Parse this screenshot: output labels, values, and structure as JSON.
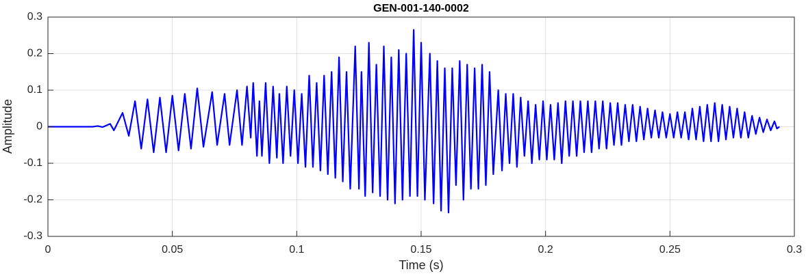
{
  "chart_data": {
    "type": "line",
    "title": "GEN-001-140-0002",
    "xlabel": "Time (s)",
    "ylabel": "Amplitude",
    "color": "#0000ff",
    "grid": true,
    "xlim": [
      0,
      0.3
    ],
    "xticks": [
      0,
      0.05,
      0.1,
      0.15,
      0.2,
      0.25,
      0.3
    ],
    "ylim": [
      -0.3,
      0.3
    ],
    "yticks": [
      -0.3,
      -0.2,
      -0.1,
      0,
      0.1,
      0.2,
      0.3
    ],
    "x": [
      0,
      0.01,
      0.018,
      0.02,
      0.022,
      0.025,
      0.0265,
      0.03,
      0.0325,
      0.035,
      0.0375,
      0.04,
      0.0425,
      0.045,
      0.0475,
      0.05,
      0.0525,
      0.055,
      0.0575,
      0.06,
      0.0625,
      0.066,
      0.068,
      0.071,
      0.073,
      0.076,
      0.078,
      0.08,
      0.0815,
      0.0825,
      0.084,
      0.085,
      0.086,
      0.0875,
      0.089,
      0.0905,
      0.092,
      0.093,
      0.0945,
      0.096,
      0.0975,
      0.099,
      0.1005,
      0.102,
      0.1035,
      0.105,
      0.1065,
      0.108,
      0.1095,
      0.111,
      0.1125,
      0.114,
      0.1155,
      0.117,
      0.1185,
      0.12,
      0.1215,
      0.1235,
      0.125,
      0.126,
      0.1275,
      0.129,
      0.1305,
      0.132,
      0.1335,
      0.135,
      0.1365,
      0.138,
      0.1395,
      0.141,
      0.1425,
      0.144,
      0.1455,
      0.147,
      0.1485,
      0.15,
      0.1515,
      0.1535,
      0.155,
      0.1565,
      0.158,
      0.1595,
      0.161,
      0.1625,
      0.164,
      0.1655,
      0.167,
      0.1685,
      0.17,
      0.1715,
      0.173,
      0.1745,
      0.176,
      0.1775,
      0.179,
      0.181,
      0.1825,
      0.184,
      0.1855,
      0.187,
      0.1885,
      0.19,
      0.1915,
      0.193,
      0.1945,
      0.196,
      0.1975,
      0.199,
      0.2005,
      0.202,
      0.2035,
      0.205,
      0.2065,
      0.208,
      0.2095,
      0.211,
      0.2125,
      0.214,
      0.2155,
      0.217,
      0.2185,
      0.22,
      0.2215,
      0.223,
      0.2245,
      0.226,
      0.2275,
      0.229,
      0.2305,
      0.232,
      0.2335,
      0.235,
      0.2365,
      0.238,
      0.2395,
      0.241,
      0.2425,
      0.244,
      0.2455,
      0.247,
      0.2485,
      0.25,
      0.2515,
      0.253,
      0.2545,
      0.256,
      0.2575,
      0.259,
      0.2605,
      0.262,
      0.2635,
      0.265,
      0.2665,
      0.268,
      0.2695,
      0.271,
      0.2725,
      0.274,
      0.2755,
      0.277,
      0.2785,
      0.28,
      0.2815,
      0.283,
      0.2845,
      0.286,
      0.2875,
      0.289,
      0.2905,
      0.292,
      0.293,
      0.294
    ],
    "values": [
      0,
      0,
      0,
      0.002,
      -0.001,
      0.008,
      -0.01,
      0.038,
      -0.025,
      0.07,
      -0.06,
      0.075,
      -0.07,
      0.08,
      -0.07,
      0.085,
      -0.065,
      0.09,
      -0.06,
      0.105,
      -0.055,
      0.095,
      -0.05,
      0.09,
      -0.05,
      0.1,
      -0.05,
      0.11,
      -0.03,
      0.12,
      -0.08,
      0.07,
      -0.08,
      0.12,
      -0.1,
      0.11,
      -0.085,
      0.09,
      -0.1,
      0.11,
      -0.08,
      0.1,
      -0.1,
      0.09,
      -0.11,
      0.14,
      -0.11,
      0.12,
      -0.12,
      0.14,
      -0.13,
      0.15,
      -0.14,
      0.19,
      -0.15,
      0.15,
      -0.17,
      0.22,
      -0.17,
      0.15,
      -0.19,
      0.23,
      -0.18,
      0.17,
      -0.19,
      0.22,
      -0.2,
      0.19,
      -0.21,
      0.21,
      -0.2,
      0.2,
      -0.19,
      0.265,
      -0.19,
      0.23,
      -0.2,
      0.2,
      -0.21,
      0.18,
      -0.23,
      0.16,
      -0.235,
      0.16,
      -0.16,
      0.18,
      -0.2,
      0.17,
      -0.17,
      0.16,
      -0.17,
      0.17,
      -0.16,
      0.15,
      -0.13,
      0.1,
      -0.12,
      0.09,
      -0.1,
      0.09,
      -0.11,
      0.08,
      -0.08,
      0.07,
      -0.1,
      0.06,
      -0.09,
      0.07,
      -0.09,
      0.06,
      -0.09,
      0.065,
      -0.1,
      0.07,
      -0.08,
      0.07,
      -0.08,
      0.07,
      -0.07,
      0.07,
      -0.07,
      0.07,
      -0.06,
      0.07,
      -0.06,
      0.065,
      -0.05,
      0.065,
      -0.05,
      0.06,
      -0.04,
      0.06,
      -0.04,
      0.055,
      -0.035,
      0.05,
      -0.03,
      0.045,
      -0.03,
      0.04,
      -0.03,
      0.035,
      -0.03,
      0.04,
      -0.03,
      0.04,
      -0.035,
      0.05,
      -0.035,
      0.055,
      -0.04,
      0.06,
      -0.04,
      0.065,
      -0.04,
      0.06,
      -0.035,
      0.055,
      -0.03,
      0.05,
      -0.03,
      0.04,
      -0.03,
      0.03,
      -0.02,
      0.025,
      -0.015,
      0.02,
      -0.01,
      0.015,
      -0.005,
      0
    ]
  }
}
